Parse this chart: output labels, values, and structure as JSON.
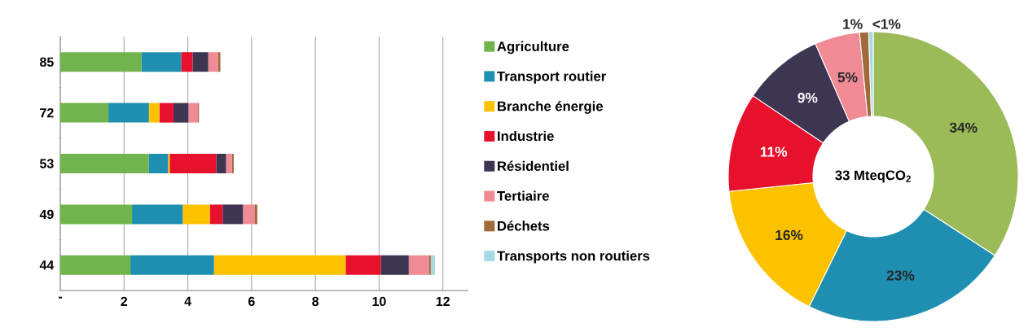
{
  "chart_data": [
    {
      "type": "bar",
      "orientation": "horizontal",
      "stacked": true,
      "categories": [
        "85",
        "72",
        "53",
        "49",
        "44"
      ],
      "series": [
        {
          "name": "Agriculture",
          "color": "#71b44e",
          "values": [
            2.55,
            1.51,
            2.77,
            2.25,
            2.2
          ]
        },
        {
          "name": "Transport routier",
          "color": "#1e8fb0",
          "values": [
            1.24,
            1.27,
            0.61,
            1.59,
            2.62
          ]
        },
        {
          "name": "Branche énergie",
          "color": "#fcc200",
          "values": [
            0,
            0.33,
            0.05,
            0.85,
            4.13
          ]
        },
        {
          "name": "Industrie",
          "color": "#e8112d",
          "values": [
            0.36,
            0.44,
            1.46,
            0.4,
            1.1
          ]
        },
        {
          "name": "Résidentiel",
          "color": "#3d3552",
          "values": [
            0.49,
            0.47,
            0.31,
            0.64,
            0.88
          ]
        },
        {
          "name": "Tertiaire",
          "color": "#f08a95",
          "values": [
            0.31,
            0.3,
            0.18,
            0.36,
            0.63
          ]
        },
        {
          "name": "Déchets",
          "color": "#a06a3a",
          "values": [
            0.07,
            0.03,
            0.06,
            0.09,
            0.06
          ]
        },
        {
          "name": "Transports non routiers",
          "color": "#a8d8e0",
          "values": [
            0,
            0,
            0,
            0,
            0.13
          ]
        }
      ],
      "xlim": [
        0,
        12.8
      ],
      "xticks": [
        {
          "value": 0,
          "label": "-"
        },
        2,
        4,
        6,
        8,
        10,
        12
      ],
      "grid": "x",
      "legend": "right"
    },
    {
      "type": "donut",
      "categories": [
        null,
        null,
        null,
        null,
        null,
        null,
        null,
        null
      ],
      "values": [
        34,
        23,
        16,
        11,
        9,
        5,
        1,
        0.5
      ],
      "colors": [
        "#9bbb59",
        "#1e8fb0",
        "#fcc200",
        "#e8112d",
        "#3d3552",
        "#f08a95",
        "#a06a3a",
        "#a8d8e0"
      ],
      "value_labels": [
        "34%",
        "23%",
        "16%",
        "11%",
        "9%",
        "5%",
        "1%",
        "<1%"
      ],
      "annotations": [
        "33 MteqCO$_{2}$"
      ]
    }
  ]
}
